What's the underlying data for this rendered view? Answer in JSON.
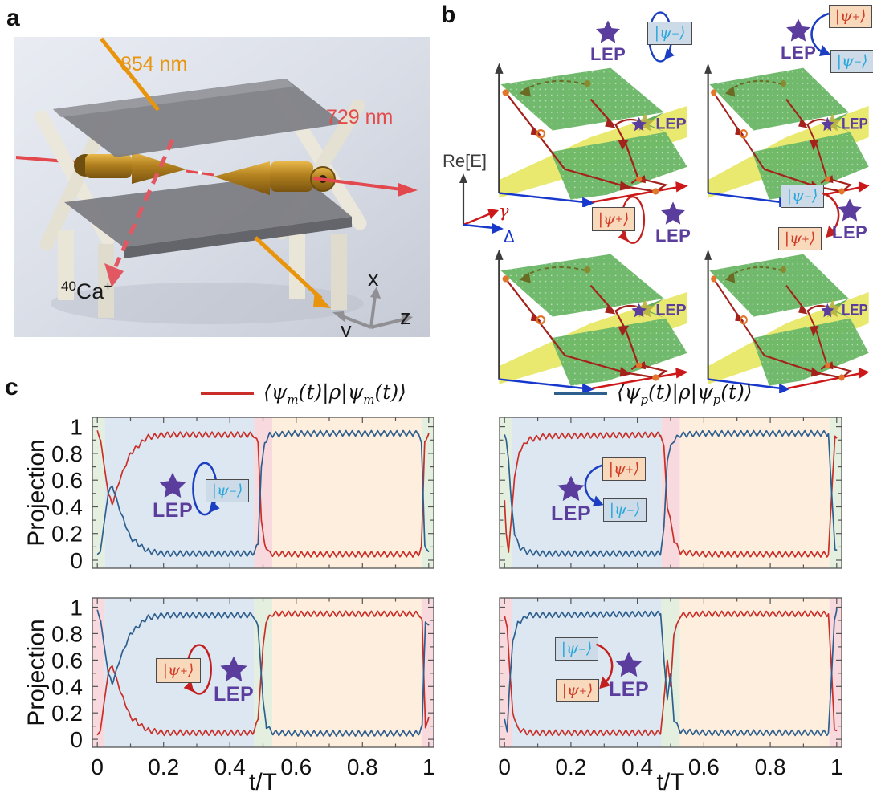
{
  "lep_label": "LEP",
  "states": {
    "minus": {
      "pre": "|ψ",
      "sub": "−",
      "post": "⟩"
    },
    "plus": {
      "pre": "|ψ",
      "sub": "+",
      "post": "⟩"
    }
  },
  "colors": {
    "red_series": "#c92f28",
    "blue_series": "#2e5f8e",
    "lep_purple": "#5a3d9c",
    "band_green": "#e4efdf",
    "band_blue": "#dce7f1",
    "band_pink": "#f7d9de",
    "band_orange": "#fdeede",
    "state_minus_fill": "#ccdbe7",
    "state_minus_text": "#2aa7db",
    "state_plus_fill": "#f8d9bc",
    "state_plus_text": "#d23b25",
    "laser_854": "#e8940c",
    "laser_729": "#e34b4b",
    "surface_green": "#6cb868",
    "surface_yellow": "#e8e868",
    "trajectory_red": "#a3231c",
    "marker_orange": "#e0772a"
  },
  "panels": {
    "a": {
      "label": "a",
      "laser_top": "854 nm",
      "laser_axial": "729 nm",
      "ion": {
        "sup": "40",
        "base": "Ca",
        "charge": "+"
      },
      "axes": {
        "x": "x",
        "y": "y",
        "z": "z"
      }
    },
    "b": {
      "label": "b",
      "energy_axis": "Re[E]",
      "gamma_axis": "γ",
      "delta_axis": "Δ",
      "subplots": [
        {
          "inset": "encircle-minus",
          "description": "loop around LEP returns |ψ−⟩ to itself"
        },
        {
          "inset": "transfer-plus-to-minus",
          "description": "loop around LEP transfers |ψ+⟩ to |ψ−⟩"
        },
        {
          "inset": "encircle-plus",
          "description": "loop around LEP returns |ψ+⟩ to itself"
        },
        {
          "inset": "transfer-minus-to-plus",
          "description": "loop around LEP transfers |ψ−⟩ to |ψ+⟩"
        }
      ]
    },
    "c": {
      "label": "c",
      "legend": [
        {
          "pre": "⟨ψ",
          "sub1": "m",
          "mid": "(t)|ρ|ψ",
          "sub2": "m",
          "post": "(t)⟩",
          "color": "#c92f28"
        },
        {
          "pre": "⟨ψ",
          "sub1": "p",
          "mid": "(t)|ρ|ψ",
          "sub2": "p",
          "post": "(t)⟩",
          "color": "#2e5f8e"
        }
      ]
    }
  },
  "chart_data": [
    {
      "type": "line",
      "id": "top-left",
      "ylabel": "Projection",
      "xlabel": null,
      "xlim": [
        -0.015,
        1.015
      ],
      "ylim": [
        -0.06,
        1.07
      ],
      "xtick_values": [
        0,
        0.2,
        0.4,
        0.6,
        0.8,
        1
      ],
      "xtick_labels": [
        "0",
        "0.2",
        "0.4",
        "0.6",
        "0.8",
        "1"
      ],
      "show_xtick_labels": false,
      "ytick_values": [
        0,
        0.2,
        0.4,
        0.6,
        0.8,
        1
      ],
      "ytick_labels": [
        "0",
        "0.2",
        "0.4",
        "0.6",
        "0.8",
        "1"
      ],
      "show_ytick_labels": true,
      "tick_minor_step": 0.1,
      "bands": [
        {
          "from": 0,
          "to": 0.022,
          "color": "green"
        },
        {
          "from": 0.022,
          "to": 0.473,
          "color": "blue"
        },
        {
          "from": 0.473,
          "to": 0.528,
          "color": "pink"
        },
        {
          "from": 0.528,
          "to": 0.978,
          "color": "orange"
        },
        {
          "from": 0.978,
          "to": 1,
          "color": "green"
        }
      ],
      "oscillation": {
        "amplitude": 0.021,
        "frequency": 52
      },
      "series": [
        {
          "name": "psi-m-projection",
          "color": "#c92f28",
          "keypoints": [
            [
              0,
              0.96
            ],
            [
              0.01,
              0.9
            ],
            [
              0.02,
              0.72
            ],
            [
              0.033,
              0.5
            ],
            [
              0.045,
              0.42
            ],
            [
              0.07,
              0.62
            ],
            [
              0.1,
              0.8
            ],
            [
              0.15,
              0.92
            ],
            [
              0.2,
              0.94
            ],
            [
              0.47,
              0.94
            ],
            [
              0.485,
              0.88
            ],
            [
              0.495,
              0.3
            ],
            [
              0.505,
              0.12
            ],
            [
              0.52,
              0.05
            ],
            [
              0.6,
              0.045
            ],
            [
              0.97,
              0.045
            ],
            [
              0.978,
              0.1
            ],
            [
              0.988,
              0.9
            ],
            [
              1,
              0.93
            ]
          ]
        },
        {
          "name": "psi-p-projection",
          "color": "#2e5f8e",
          "keypoints": [
            [
              0,
              0.03
            ],
            [
              0.01,
              0.08
            ],
            [
              0.02,
              0.27
            ],
            [
              0.033,
              0.5
            ],
            [
              0.045,
              0.56
            ],
            [
              0.07,
              0.36
            ],
            [
              0.1,
              0.17
            ],
            [
              0.15,
              0.07
            ],
            [
              0.2,
              0.05
            ],
            [
              0.47,
              0.05
            ],
            [
              0.485,
              0.12
            ],
            [
              0.495,
              0.7
            ],
            [
              0.505,
              0.88
            ],
            [
              0.52,
              0.94
            ],
            [
              0.6,
              0.95
            ],
            [
              0.97,
              0.95
            ],
            [
              0.978,
              0.88
            ],
            [
              0.988,
              0.12
            ],
            [
              1,
              0.05
            ]
          ]
        }
      ],
      "inset": {
        "lep": "LEP",
        "operation": "encircle",
        "state": "minus",
        "arrow_color": "#1c3ec2"
      }
    },
    {
      "type": "line",
      "id": "top-right",
      "ylabel": null,
      "xlabel": null,
      "xlim": [
        -0.015,
        1.015
      ],
      "ylim": [
        -0.06,
        1.07
      ],
      "xtick_values": [
        0,
        0.2,
        0.4,
        0.6,
        0.8,
        1
      ],
      "xtick_labels": [
        "0",
        "0.2",
        "0.4",
        "0.6",
        "0.8",
        "1"
      ],
      "show_xtick_labels": false,
      "ytick_values": [
        0,
        0.2,
        0.4,
        0.6,
        0.8,
        1
      ],
      "ytick_labels": [
        "0",
        "0.2",
        "0.4",
        "0.6",
        "0.8",
        "1"
      ],
      "show_ytick_labels": false,
      "tick_minor_step": 0.1,
      "bands": [
        {
          "from": 0,
          "to": 0.022,
          "color": "green"
        },
        {
          "from": 0.022,
          "to": 0.473,
          "color": "blue"
        },
        {
          "from": 0.473,
          "to": 0.528,
          "color": "pink"
        },
        {
          "from": 0.528,
          "to": 0.978,
          "color": "orange"
        },
        {
          "from": 0.978,
          "to": 1,
          "color": "green"
        }
      ],
      "oscillation": {
        "amplitude": 0.021,
        "frequency": 52
      },
      "series": [
        {
          "name": "psi-m-projection",
          "color": "#c92f28",
          "keypoints": [
            [
              0,
              0.45
            ],
            [
              0.005,
              0.2
            ],
            [
              0.012,
              0.06
            ],
            [
              0.02,
              0.3
            ],
            [
              0.03,
              0.62
            ],
            [
              0.045,
              0.82
            ],
            [
              0.07,
              0.9
            ],
            [
              0.12,
              0.93
            ],
            [
              0.47,
              0.94
            ],
            [
              0.48,
              0.85
            ],
            [
              0.49,
              0.4
            ],
            [
              0.5,
              0.3
            ],
            [
              0.51,
              0.15
            ],
            [
              0.53,
              0.06
            ],
            [
              0.6,
              0.045
            ],
            [
              0.975,
              0.045
            ],
            [
              0.985,
              0.5
            ],
            [
              0.995,
              0.93
            ],
            [
              1,
              0.9
            ]
          ]
        },
        {
          "name": "psi-p-projection",
          "color": "#2e5f8e",
          "keypoints": [
            [
              0,
              0.93
            ],
            [
              0.005,
              0.9
            ],
            [
              0.012,
              0.75
            ],
            [
              0.02,
              0.45
            ],
            [
              0.03,
              0.2
            ],
            [
              0.045,
              0.1
            ],
            [
              0.07,
              0.06
            ],
            [
              0.12,
              0.05
            ],
            [
              0.47,
              0.05
            ],
            [
              0.48,
              0.25
            ],
            [
              0.49,
              0.75
            ],
            [
              0.5,
              0.85
            ],
            [
              0.51,
              0.9
            ],
            [
              0.53,
              0.94
            ],
            [
              0.6,
              0.95
            ],
            [
              0.975,
              0.95
            ],
            [
              0.985,
              0.5
            ],
            [
              0.995,
              0.08
            ],
            [
              1,
              0.06
            ]
          ]
        }
      ],
      "inset": {
        "lep": "LEP",
        "operation": "transfer",
        "from_state": "plus",
        "to_state": "minus",
        "arrow_color": "#1c3ec2"
      }
    },
    {
      "type": "line",
      "id": "bottom-left",
      "ylabel": "Projection",
      "xlabel": "t/T",
      "xlim": [
        -0.015,
        1.015
      ],
      "ylim": [
        -0.06,
        1.07
      ],
      "xtick_values": [
        0,
        0.2,
        0.4,
        0.6,
        0.8,
        1
      ],
      "xtick_labels": [
        "0",
        "0.2",
        "0.4",
        "0.6",
        "0.8",
        "1"
      ],
      "show_xtick_labels": true,
      "ytick_values": [
        0,
        0.2,
        0.4,
        0.6,
        0.8,
        1
      ],
      "ytick_labels": [
        "0",
        "0.2",
        "0.4",
        "0.6",
        "0.8",
        "1"
      ],
      "show_ytick_labels": true,
      "tick_minor_step": 0.1,
      "bands": [
        {
          "from": 0,
          "to": 0.022,
          "color": "pink"
        },
        {
          "from": 0.022,
          "to": 0.473,
          "color": "blue"
        },
        {
          "from": 0.473,
          "to": 0.528,
          "color": "green"
        },
        {
          "from": 0.528,
          "to": 0.978,
          "color": "orange"
        },
        {
          "from": 0.978,
          "to": 1,
          "color": "pink"
        }
      ],
      "oscillation": {
        "amplitude": 0.021,
        "frequency": 52
      },
      "series": [
        {
          "name": "psi-m-projection",
          "color": "#c92f28",
          "keypoints": [
            [
              0,
              0.02
            ],
            [
              0.01,
              0.08
            ],
            [
              0.02,
              0.27
            ],
            [
              0.033,
              0.5
            ],
            [
              0.045,
              0.56
            ],
            [
              0.07,
              0.36
            ],
            [
              0.1,
              0.17
            ],
            [
              0.15,
              0.07
            ],
            [
              0.2,
              0.05
            ],
            [
              0.47,
              0.05
            ],
            [
              0.485,
              0.15
            ],
            [
              0.5,
              0.7
            ],
            [
              0.51,
              0.9
            ],
            [
              0.53,
              0.95
            ],
            [
              0.6,
              0.95
            ],
            [
              0.97,
              0.95
            ],
            [
              0.98,
              0.9
            ],
            [
              0.99,
              0.1
            ],
            [
              1,
              0.15
            ]
          ]
        },
        {
          "name": "psi-p-projection",
          "color": "#2e5f8e",
          "keypoints": [
            [
              0,
              0.97
            ],
            [
              0.01,
              0.9
            ],
            [
              0.02,
              0.72
            ],
            [
              0.033,
              0.5
            ],
            [
              0.045,
              0.42
            ],
            [
              0.07,
              0.62
            ],
            [
              0.1,
              0.8
            ],
            [
              0.15,
              0.92
            ],
            [
              0.2,
              0.94
            ],
            [
              0.47,
              0.94
            ],
            [
              0.485,
              0.85
            ],
            [
              0.5,
              0.3
            ],
            [
              0.51,
              0.1
            ],
            [
              0.53,
              0.05
            ],
            [
              0.6,
              0.045
            ],
            [
              0.97,
              0.045
            ],
            [
              0.98,
              0.1
            ],
            [
              0.99,
              0.9
            ],
            [
              1,
              0.85
            ]
          ]
        }
      ],
      "inset": {
        "lep": "LEP",
        "operation": "encircle",
        "state": "plus",
        "arrow_color": "#c41f1f"
      }
    },
    {
      "type": "line",
      "id": "bottom-right",
      "ylabel": null,
      "xlabel": "t/T",
      "xlim": [
        -0.015,
        1.015
      ],
      "ylim": [
        -0.06,
        1.07
      ],
      "xtick_values": [
        0,
        0.2,
        0.4,
        0.6,
        0.8,
        1
      ],
      "xtick_labels": [
        "0",
        "0.2",
        "0.4",
        "0.6",
        "0.8",
        "1"
      ],
      "show_xtick_labels": true,
      "ytick_values": [
        0,
        0.2,
        0.4,
        0.6,
        0.8,
        1
      ],
      "ytick_labels": [
        "0",
        "0.2",
        "0.4",
        "0.6",
        "0.8",
        "1"
      ],
      "show_ytick_labels": false,
      "tick_minor_step": 0.1,
      "bands": [
        {
          "from": 0,
          "to": 0.022,
          "color": "pink"
        },
        {
          "from": 0.022,
          "to": 0.473,
          "color": "blue"
        },
        {
          "from": 0.473,
          "to": 0.528,
          "color": "green"
        },
        {
          "from": 0.528,
          "to": 0.978,
          "color": "orange"
        },
        {
          "from": 0.978,
          "to": 1,
          "color": "pink"
        }
      ],
      "oscillation": {
        "amplitude": 0.021,
        "frequency": 52
      },
      "series": [
        {
          "name": "psi-m-projection",
          "color": "#c92f28",
          "keypoints": [
            [
              0,
              0.93
            ],
            [
              0.008,
              0.85
            ],
            [
              0.015,
              0.55
            ],
            [
              0.025,
              0.2
            ],
            [
              0.04,
              0.08
            ],
            [
              0.07,
              0.05
            ],
            [
              0.47,
              0.05
            ],
            [
              0.48,
              0.3
            ],
            [
              0.49,
              0.6
            ],
            [
              0.5,
              0.4
            ],
            [
              0.51,
              0.8
            ],
            [
              0.53,
              0.94
            ],
            [
              0.6,
              0.95
            ],
            [
              0.975,
              0.95
            ],
            [
              0.985,
              0.5
            ],
            [
              0.993,
              0.08
            ],
            [
              1,
              0.05
            ]
          ]
        },
        {
          "name": "psi-p-projection",
          "color": "#2e5f8e",
          "keypoints": [
            [
              0,
              0.15
            ],
            [
              0.008,
              0.06
            ],
            [
              0.015,
              0.4
            ],
            [
              0.025,
              0.75
            ],
            [
              0.04,
              0.88
            ],
            [
              0.07,
              0.94
            ],
            [
              0.47,
              0.95
            ],
            [
              0.48,
              0.6
            ],
            [
              0.49,
              0.3
            ],
            [
              0.5,
              0.5
            ],
            [
              0.51,
              0.15
            ],
            [
              0.53,
              0.06
            ],
            [
              0.6,
              0.05
            ],
            [
              0.975,
              0.05
            ],
            [
              0.985,
              0.5
            ],
            [
              0.993,
              0.9
            ],
            [
              1,
              0.97
            ]
          ]
        }
      ],
      "inset": {
        "lep": "LEP",
        "operation": "transfer",
        "from_state": "minus",
        "to_state": "plus",
        "arrow_color": "#c41f1f"
      }
    }
  ]
}
